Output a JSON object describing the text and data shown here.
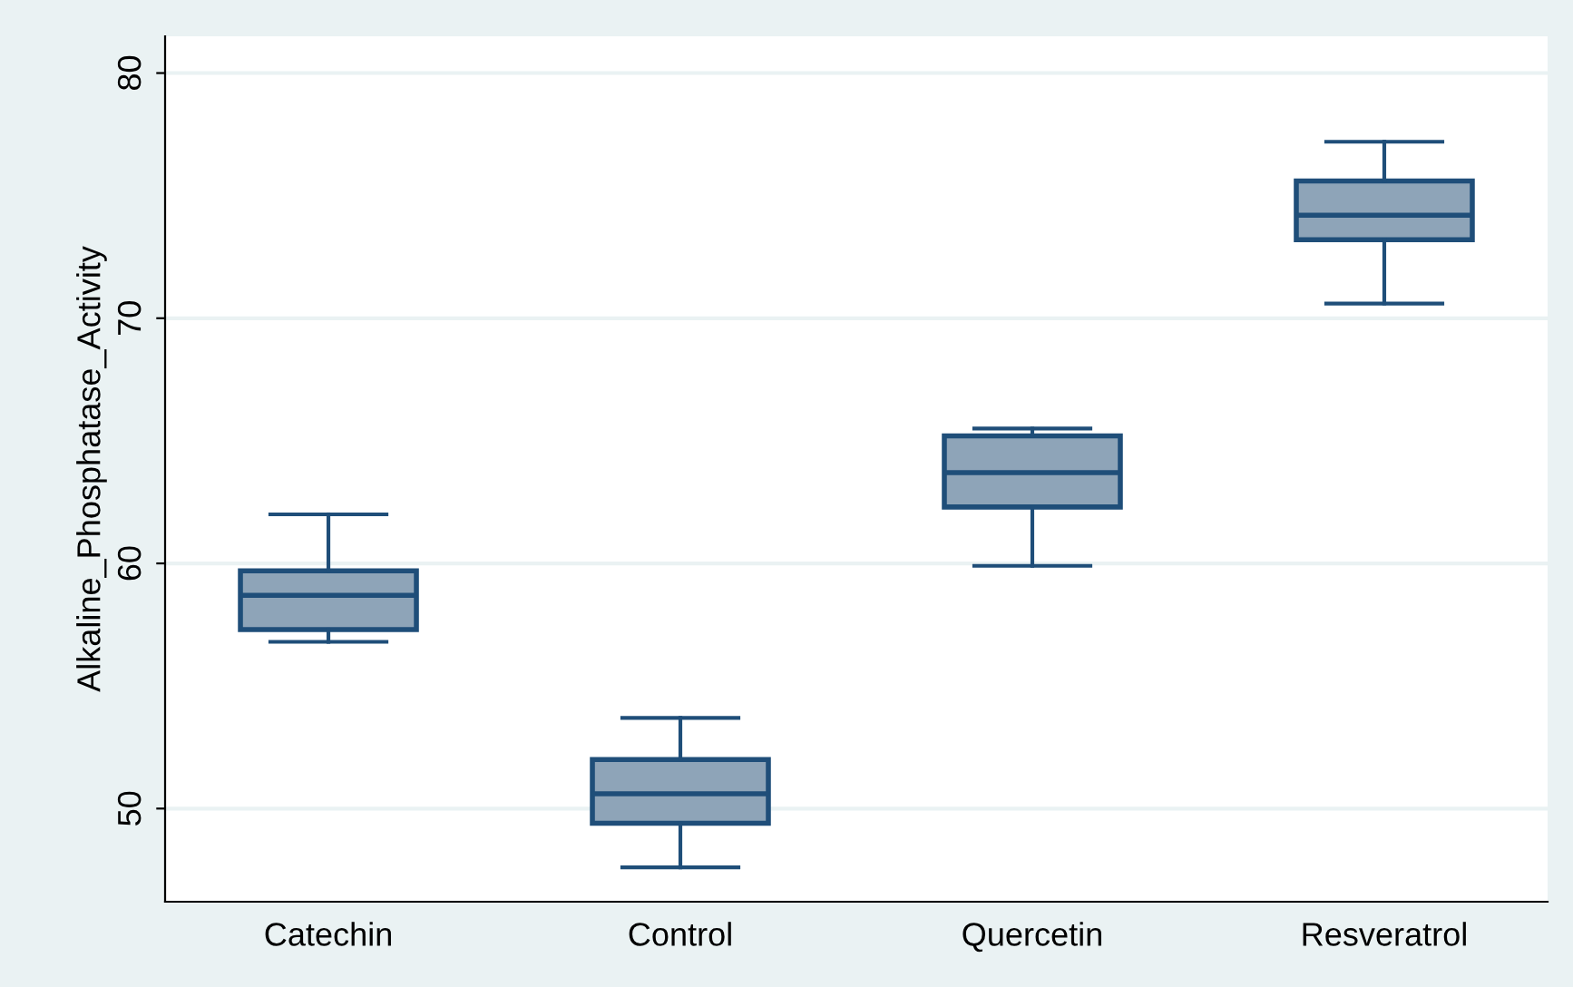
{
  "chart_data": {
    "type": "box",
    "ylabel": "Alkaline_Phosphatase_Activity",
    "categories": [
      "Catechin",
      "Control",
      "Quercetin",
      "Resveratrol"
    ],
    "boxes": [
      {
        "low": 56.8,
        "q1": 57.3,
        "median": 58.7,
        "q3": 59.7,
        "high": 62.0
      },
      {
        "low": 47.6,
        "q1": 49.4,
        "median": 50.6,
        "q3": 52.0,
        "high": 53.7
      },
      {
        "low": 59.9,
        "q1": 62.3,
        "median": 63.7,
        "q3": 65.2,
        "high": 65.5
      },
      {
        "low": 70.6,
        "q1": 73.2,
        "median": 74.2,
        "q3": 75.6,
        "high": 77.2
      }
    ],
    "color": "#8ea4b8",
    "ylim": [
      46.2,
      81.5
    ],
    "yticks": [
      50,
      60,
      70,
      80
    ],
    "grid": "y",
    "legend": false
  }
}
